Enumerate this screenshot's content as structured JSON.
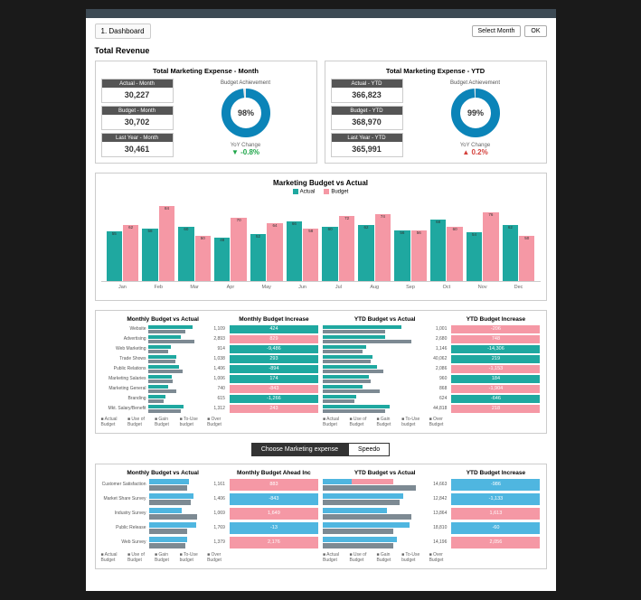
{
  "header": {
    "tab": "1. Dashboard",
    "select_btn": "Select Month",
    "ok_btn": "OK"
  },
  "section": {
    "title": "Total Revenue"
  },
  "colors": {
    "teal": "#1fa8a0",
    "pink": "#f598a5",
    "grey": "#7d8a93",
    "blue": "#4fb6e0",
    "darkblue": "#0b84b8",
    "green": "#1fa64a",
    "red": "#d43f3a"
  },
  "kpi": [
    {
      "title": "Total Marketing Expense - Month",
      "boxes": [
        {
          "h": "Actual - Month",
          "v": "30,227"
        },
        {
          "h": "Budget - Month",
          "v": "30,702"
        },
        {
          "h": "Last Year - Month",
          "v": "30,461"
        }
      ],
      "donut": {
        "label": "Budget Achievement",
        "pct": 98,
        "color": "#0b84b8"
      },
      "yoy": {
        "lbl": "YoY Change",
        "val": "-0.8%",
        "dir": "down",
        "color": "#1fa64a"
      }
    },
    {
      "title": "Total Marketing Expense - YTD",
      "boxes": [
        {
          "h": "Actual - YTD",
          "v": "366,823"
        },
        {
          "h": "Budget - YTD",
          "v": "368,970"
        },
        {
          "h": "Last Year - YTD",
          "v": "365,991"
        }
      ],
      "donut": {
        "label": "Budget Achievement",
        "pct": 99,
        "color": "#0b84b8"
      },
      "yoy": {
        "lbl": "YoY Change",
        "val": "0.2%",
        "dir": "up",
        "color": "#d43f3a"
      }
    }
  ],
  "chart": {
    "title": "Marketing Budget vs Actual",
    "legend": [
      {
        "name": "Actual",
        "color": "#1fa8a0"
      },
      {
        "name": "Budget",
        "color": "#f598a5"
      }
    ],
    "months": [
      "Jan",
      "Feb",
      "Mar",
      "Apr",
      "May",
      "Jun",
      "Jul",
      "Aug",
      "Sep",
      "Oct",
      "Nov",
      "Dec"
    ],
    "actual": [
      55,
      58,
      60,
      48,
      52,
      66,
      60,
      62,
      56,
      68,
      54,
      62
    ],
    "budget": [
      62,
      84,
      50,
      70,
      64,
      58,
      72,
      74,
      56,
      60,
      76,
      50
    ],
    "ymax": 90
  },
  "table1": {
    "cols": [
      "Monthly Budget vs Actual",
      "Monthly Budget Increase",
      "YTD Budget vs Actual",
      "YTD Budget Increase"
    ],
    "rows": [
      {
        "name": "Website",
        "mA": 78,
        "mB": 65,
        "mVal": "1,109",
        "mInc": "424",
        "mIncC": "#1fa8a0",
        "yA": 75,
        "yB": 60,
        "yVal": "1,001",
        "yInc": "-206",
        "yIncC": "#f598a5"
      },
      {
        "name": "Advertising",
        "mA": 58,
        "mB": 82,
        "mVal": "2,893",
        "mInc": "829",
        "mIncC": "#f598a5",
        "yA": 60,
        "yB": 85,
        "yVal": "2,680",
        "yInc": "748",
        "yIncC": "#f598a5"
      },
      {
        "name": "Web Marketing",
        "mA": 40,
        "mB": 35,
        "mVal": "914",
        "mInc": "-9,486",
        "mIncC": "#1fa8a0",
        "yA": 42,
        "yB": 38,
        "yVal": "1,146",
        "yInc": "-14,306",
        "yIncC": "#1fa8a0"
      },
      {
        "name": "Trade Shows",
        "mA": 50,
        "mB": 48,
        "mVal": "1,038",
        "mInc": "293",
        "mIncC": "#1fa8a0",
        "yA": 48,
        "yB": 46,
        "yVal": "40,062",
        "yInc": "219",
        "yIncC": "#1fa8a0"
      },
      {
        "name": "Public Relations",
        "mA": 55,
        "mB": 60,
        "mVal": "1,406",
        "mInc": "-894",
        "mIncC": "#1fa8a0",
        "yA": 52,
        "yB": 58,
        "yVal": "2,086",
        "yInc": "-1,153",
        "yIncC": "#f598a5"
      },
      {
        "name": "Marketing Salaries",
        "mA": 42,
        "mB": 44,
        "mVal": "1,006",
        "mInc": "174",
        "mIncC": "#1fa8a0",
        "yA": 44,
        "yB": 46,
        "yVal": "960",
        "yInc": "184",
        "yIncC": "#1fa8a0"
      },
      {
        "name": "Marketing General",
        "mA": 35,
        "mB": 50,
        "mVal": "740",
        "mInc": "-843",
        "mIncC": "#f598a5",
        "yA": 38,
        "yB": 55,
        "yVal": "868",
        "yInc": "-1,904",
        "yIncC": "#f598a5"
      },
      {
        "name": "Branding",
        "mA": 30,
        "mB": 28,
        "mVal": "615",
        "mInc": "-1,266",
        "mIncC": "#1fa8a0",
        "yA": 32,
        "yB": 30,
        "yVal": "624",
        "yInc": "-646",
        "yIncC": "#1fa8a0"
      },
      {
        "name": "Mkt. Salary/Benefit",
        "mA": 62,
        "mB": 58,
        "mVal": "1,312",
        "mInc": "243",
        "mIncC": "#f598a5",
        "yA": 64,
        "yB": 60,
        "yVal": "44,818",
        "yInc": "218",
        "yIncC": "#f598a5"
      }
    ],
    "colors": {
      "actual": "#1fa8a0",
      "budget": "#7d8a93"
    },
    "footnote": [
      "Actual Budget",
      "Use of Budget",
      "Gain Budget",
      "To-Use budget",
      "Over Budget"
    ]
  },
  "tabs": {
    "active": "Choose Marketing expense",
    "other": "Speedo"
  },
  "table2": {
    "cols": [
      "Monthly Budget vs Actual",
      "Monthly Budget Ahead Inc",
      "YTD Budget vs Actual",
      "YTD Budget Increase"
    ],
    "rows": [
      {
        "name": "Customer Satisfaction",
        "mA": 72,
        "mB": 70,
        "mVal": "1,161",
        "mInc": "883",
        "mIncC": "#f598a5",
        "yA": 28,
        "yA2": 68,
        "yB": 90,
        "yVal": "14,663",
        "yInc": "-986",
        "yIncC": "#4fb6e0"
      },
      {
        "name": "Market Share Survey",
        "mA": 80,
        "mB": 76,
        "mVal": "1,406",
        "mInc": "-843",
        "mIncC": "#4fb6e0",
        "yA": 78,
        "yB": 74,
        "yVal": "12,842",
        "yInc": "-1,133",
        "yIncC": "#4fb6e0"
      },
      {
        "name": "Industry Survey",
        "mA": 60,
        "mB": 88,
        "mVal": "1,069",
        "mInc": "1,649",
        "mIncC": "#f598a5",
        "yA": 62,
        "yB": 86,
        "yVal": "13,864",
        "yInc": "1,613",
        "yIncC": "#f598a5"
      },
      {
        "name": "Public Release",
        "mA": 85,
        "mB": 70,
        "mVal": "1,769",
        "mInc": "-13",
        "mIncC": "#4fb6e0",
        "yA": 84,
        "yB": 68,
        "yVal": "18,810",
        "yInc": "-60",
        "yIncC": "#4fb6e0"
      },
      {
        "name": "Web Survey",
        "mA": 70,
        "mB": 66,
        "mVal": "1,379",
        "mInc": "2,176",
        "mIncC": "#f598a5",
        "yA": 72,
        "yB": 68,
        "yVal": "14,196",
        "yInc": "2,056",
        "yIncC": "#f598a5"
      }
    ],
    "colors": {
      "actual": "#4fb6e0",
      "budget": "#7d8a93"
    },
    "footnote": [
      "Actual Budget",
      "Use of Budget",
      "Gain Budget",
      "To-Use budget",
      "Over Budget"
    ]
  }
}
